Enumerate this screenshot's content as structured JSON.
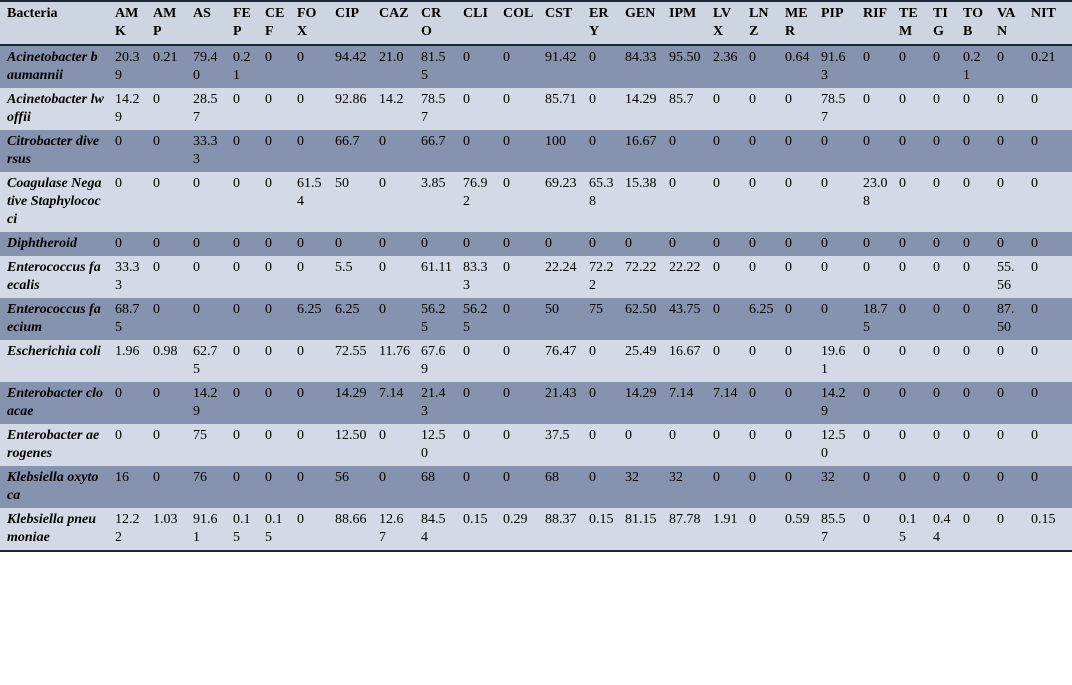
{
  "table": {
    "bacteria_column_header": "Bacteria",
    "antibiotic_columns": [
      "AMK",
      "AMP",
      "AS",
      "FEP",
      "CEF",
      "FOX",
      "CIP",
      "CAZ",
      "CRO",
      "CLI",
      "COL",
      "CST",
      "ERY",
      "GEN",
      "IPM",
      "LVX",
      "LNZ",
      "MER",
      "PIP",
      "RIF",
      "TEM",
      "TIG",
      "TOB",
      "VAN",
      "NIT"
    ],
    "rows": [
      {
        "bacteria": "Acinetobacter baumannii",
        "values": [
          "20.39",
          "0.21",
          "79.40",
          "0.21",
          "0",
          "0",
          "94.42",
          "21.0",
          "81.55",
          "0",
          "0",
          "91.42",
          "0",
          "84.33",
          "95.50",
          "2.36",
          "0",
          "0.64",
          "91.63",
          "0",
          "0",
          "0",
          "0.21",
          "0",
          "0.21"
        ]
      },
      {
        "bacteria": "Acinetobacter lwoffii",
        "values": [
          "14.29",
          "0",
          "28.57",
          "0",
          "0",
          "0",
          "92.86",
          "14.2",
          "78.57",
          "0",
          "0",
          "85.71",
          "0",
          "14.29",
          "85.7",
          "0",
          "0",
          "0",
          "78.57",
          "0",
          "0",
          "0",
          "0",
          "0",
          "0"
        ]
      },
      {
        "bacteria": "Citrobacter diversus",
        "values": [
          "0",
          "0",
          "33.33",
          "0",
          "0",
          "0",
          "66.7",
          "0",
          "66.7",
          "0",
          "0",
          "100",
          "0",
          "16.67",
          "0",
          "0",
          "0",
          "0",
          "0",
          "0",
          "0",
          "0",
          "0",
          "0",
          "0"
        ]
      },
      {
        "bacteria": "Coagulase Negative Staphylococci",
        "values": [
          "0",
          "0",
          "0",
          "0",
          "0",
          "61.54",
          "50",
          "0",
          "3.85",
          "76.92",
          "0",
          "69.23",
          "65.38",
          "15.38",
          "0",
          "0",
          "0",
          "0",
          "0",
          "23.08",
          "0",
          "0",
          "0",
          "0",
          "0"
        ]
      },
      {
        "bacteria": "Diphtheroid",
        "values": [
          "0",
          "0",
          "0",
          "0",
          "0",
          "0",
          "0",
          "0",
          "0",
          "0",
          "0",
          "0",
          "0",
          "0",
          "0",
          "0",
          "0",
          "0",
          "0",
          "0",
          "0",
          "0",
          "0",
          "0",
          "0"
        ]
      },
      {
        "bacteria": "Enterococcus faecalis",
        "values": [
          "33.33",
          "0",
          "0",
          "0",
          "0",
          "0",
          "5.5",
          "0",
          "61.11",
          "83.33",
          "0",
          "22.24",
          "72.22",
          "72.22",
          "22.22",
          "0",
          "0",
          "0",
          "0",
          "0",
          "0",
          "0",
          "0",
          "55.56",
          "0"
        ]
      },
      {
        "bacteria": "Enterococcus faecium",
        "values": [
          "68.75",
          "0",
          "0",
          "0",
          "0",
          "6.25",
          "6.25",
          "0",
          "56.25",
          "56.25",
          "0",
          "50",
          "75",
          "62.50",
          "43.75",
          "0",
          "6.25",
          "0",
          "0",
          "18.75",
          "0",
          "0",
          "0",
          "87.50",
          "0"
        ]
      },
      {
        "bacteria": "Escherichia coli",
        "values": [
          "1.96",
          "0.98",
          "62.75",
          "0",
          "0",
          "0",
          "72.55",
          "11.76",
          "67.69",
          "0",
          "0",
          "76.47",
          "0",
          "25.49",
          "16.67",
          "0",
          "0",
          "0",
          "19.61",
          "0",
          "0",
          "0",
          "0",
          "0",
          "0"
        ]
      },
      {
        "bacteria": "Enterobacter cloacae",
        "values": [
          "0",
          "0",
          "14.29",
          "0",
          "0",
          "0",
          "14.29",
          "7.14",
          "21.43",
          "0",
          "0",
          "21.43",
          "0",
          "14.29",
          "7.14",
          "7.14",
          "0",
          "0",
          "14.29",
          "0",
          "0",
          "0",
          "0",
          "0",
          "0"
        ]
      },
      {
        "bacteria": "Enterobacter aerogenes",
        "values": [
          "0",
          "0",
          "75",
          "0",
          "0",
          "0",
          "12.50",
          "0",
          "12.50",
          "0",
          "0",
          "37.5",
          "0",
          "0",
          "0",
          "0",
          "0",
          "0",
          "12.50",
          "0",
          "0",
          "0",
          "0",
          "0",
          "0"
        ]
      },
      {
        "bacteria": "Klebsiella oxytoca",
        "values": [
          "16",
          "0",
          "76",
          "0",
          "0",
          "0",
          "56",
          "0",
          "68",
          "0",
          "0",
          "68",
          "0",
          "32",
          "32",
          "0",
          "0",
          "0",
          "32",
          "0",
          "0",
          "0",
          "0",
          "0",
          "0"
        ]
      },
      {
        "bacteria": "Klebsiella pneumoniae",
        "values": [
          "12.22",
          "1.03",
          "91.61",
          "0.15",
          "0.15",
          "0",
          "88.66",
          "12.67",
          "84.54",
          "0.15",
          "0.29",
          "88.37",
          "0.15",
          "81.15",
          "87.78",
          "1.91",
          "0",
          "0.59",
          "85.57",
          "0",
          "0.15",
          "0.44",
          "0",
          "0",
          "0.15"
        ]
      }
    ]
  },
  "colors": {
    "header_background": "#ccd5e0",
    "dark_row_background": "#8593af",
    "light_row_background": "#d3dae5",
    "border": "#1d2735",
    "text": "#000000"
  }
}
